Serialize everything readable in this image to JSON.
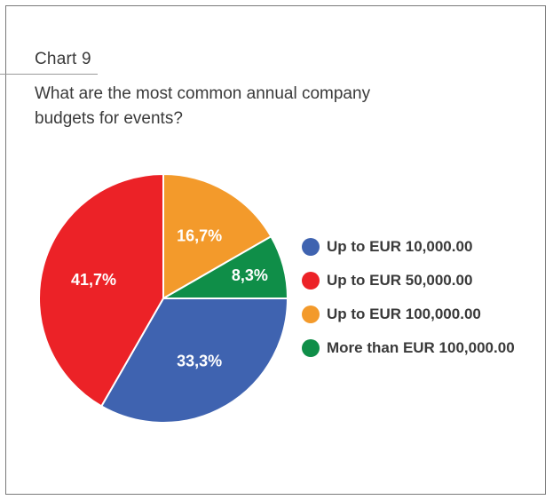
{
  "header": {
    "chart_label": "Chart 9",
    "question": "What are the most common annual company budgets for events?"
  },
  "chart_data": {
    "type": "pie",
    "title": "What are the most common annual company budgets for events?",
    "slices": [
      {
        "label": "Up to EUR 10,000.00",
        "value": 33.3,
        "display": "33,3%",
        "color": "#3f63b0"
      },
      {
        "label": "Up to EUR 50,000.00",
        "value": 41.7,
        "display": "41,7%",
        "color": "#ec2227"
      },
      {
        "label": "Up to EUR 100,000.00",
        "value": 16.7,
        "display": "16,7%",
        "color": "#f39a2b"
      },
      {
        "label": "More than EUR 100,000.00",
        "value": 8.3,
        "display": "8,3%",
        "color": "#0f8e48"
      }
    ],
    "legend_position": "right"
  }
}
